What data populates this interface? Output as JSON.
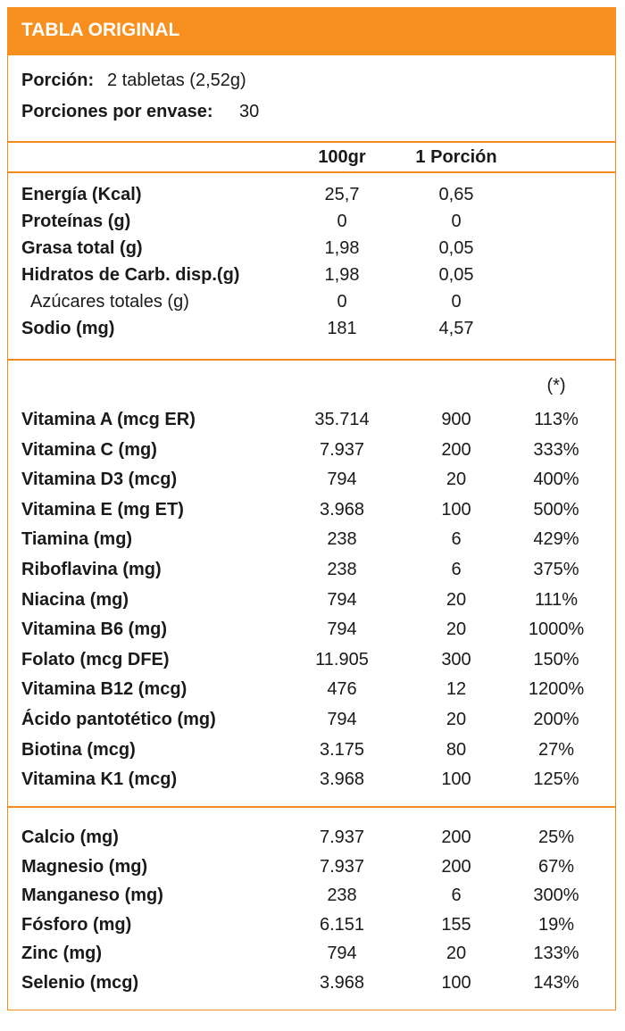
{
  "header": {
    "title": "TABLA ORIGINAL"
  },
  "serving": {
    "portion_label": "Porción:",
    "portion_value": "2 tabletas (2,52g)",
    "servings_label": "Porciones por envase:",
    "servings_value": "30"
  },
  "columns": [
    "100gr",
    "1 Porción"
  ],
  "macros": [
    [
      "Energía (Kcal)",
      "25,7",
      "0,65"
    ],
    [
      "Proteínas (g)",
      "0",
      "0"
    ],
    [
      "Grasa total (g)",
      "1,98",
      "0,05"
    ],
    [
      "Hidratos de Carb. disp.(g)",
      "1,98",
      "0,05"
    ],
    [
      "Azúcares totales (g)",
      "0",
      "0"
    ],
    [
      "Sodio (mg)",
      "181",
      "4,57"
    ]
  ],
  "daily_note": "(*)",
  "vitamins": [
    [
      "Vitamina A (mcg ER)",
      "35.714",
      "900",
      "113%"
    ],
    [
      "Vitamina C (mg)",
      "7.937",
      "200",
      "333%"
    ],
    [
      "Vitamina D3 (mcg)",
      "794",
      "20",
      "400%"
    ],
    [
      "Vitamina E (mg ET)",
      "3.968",
      "100",
      "500%"
    ],
    [
      "Tiamina (mg)",
      "238",
      "6",
      "429%"
    ],
    [
      "Riboflavina (mg)",
      "238",
      "6",
      "375%"
    ],
    [
      "Niacina (mg)",
      "794",
      "20",
      "111%"
    ],
    [
      "Vitamina B6 (mg)",
      "794",
      "20",
      "1000%"
    ],
    [
      "Folato (mcg DFE)",
      "11.905",
      "300",
      "150%"
    ],
    [
      "Vitamina B12 (mcg)",
      "476",
      "12",
      "1200%"
    ],
    [
      "Ácido pantotético (mg)",
      "794",
      "20",
      "200%"
    ],
    [
      "Biotina (mcg)",
      "3.175",
      "80",
      "27%"
    ],
    [
      "Vitamina K1 (mcg)",
      "3.968",
      "100",
      "125%"
    ]
  ],
  "minerals": [
    [
      "Calcio (mg)",
      "7.937",
      "200",
      "25%"
    ],
    [
      "Magnesio (mg)",
      "7.937",
      "200",
      "67%"
    ],
    [
      "Manganeso (mg)",
      "238",
      "6",
      "300%"
    ],
    [
      "Fósforo (mg)",
      "6.151",
      "155",
      "19%"
    ],
    [
      "Zinc (mg)",
      "794",
      "20",
      "133%"
    ],
    [
      "Selenio (mcg)",
      "3.968",
      "100",
      "143%"
    ]
  ]
}
